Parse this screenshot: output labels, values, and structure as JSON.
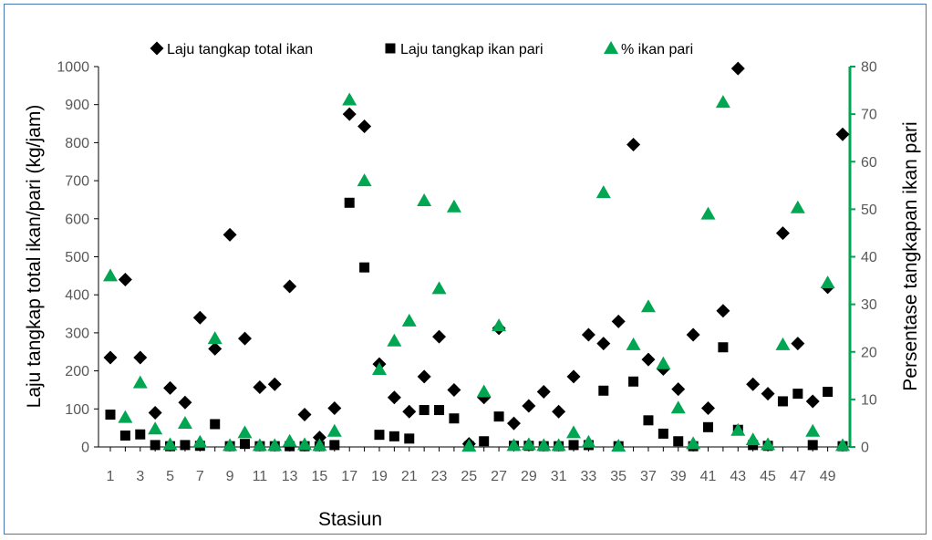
{
  "chart_data": {
    "type": "scatter",
    "xlabel": "Stasiun",
    "ylabel": "Laju tangkap total ikan/pari (kg/jam)",
    "y2label": "Persentase tangkapan ikan pari",
    "xlim": [
      1,
      50
    ],
    "ylim": [
      0,
      1000
    ],
    "y2lim": [
      0,
      80
    ],
    "x_tick_labels": [
      "1",
      "3",
      "5",
      "7",
      "9",
      "11",
      "13",
      "15",
      "17",
      "19",
      "21",
      "23",
      "25",
      "27",
      "29",
      "31",
      "33",
      "35",
      "37",
      "39",
      "41",
      "43",
      "45",
      "47",
      "49"
    ],
    "y_ticks": [
      "0",
      "100",
      "200",
      "300",
      "400",
      "500",
      "600",
      "700",
      "800",
      "900",
      "1000"
    ],
    "y2_ticks": [
      "0",
      "10",
      "20",
      "30",
      "40",
      "50",
      "60",
      "70",
      "80"
    ],
    "grid": false,
    "legend_position": "top",
    "x": [
      1,
      2,
      3,
      4,
      5,
      6,
      7,
      8,
      9,
      10,
      11,
      12,
      13,
      14,
      15,
      16,
      17,
      18,
      19,
      20,
      21,
      22,
      23,
      24,
      25,
      26,
      27,
      28,
      29,
      30,
      31,
      32,
      33,
      34,
      35,
      36,
      37,
      38,
      39,
      40,
      41,
      42,
      43,
      44,
      45,
      46,
      47,
      48,
      49,
      50
    ],
    "series": [
      {
        "name": "Laju tangkap total ikan",
        "marker": "diamond",
        "axis": "left",
        "color": "#000000",
        "values": [
          235,
          440,
          235,
          90,
          155,
          117,
          340,
          258,
          558,
          285,
          157,
          165,
          422,
          85,
          25,
          102,
          875,
          843,
          218,
          130,
          93,
          185,
          290,
          150,
          8,
          130,
          312,
          62,
          108,
          145,
          93,
          185,
          295,
          272,
          330,
          795,
          230,
          205,
          152,
          295,
          102,
          358,
          995,
          165,
          140,
          562,
          272,
          120,
          420,
          822
        ]
      },
      {
        "name": "Laju tangkap ikan pari",
        "marker": "square",
        "axis": "left",
        "color": "#000000",
        "values": [
          85,
          30,
          33,
          5,
          2,
          5,
          3,
          60,
          2,
          8,
          2,
          2,
          2,
          2,
          2,
          5,
          642,
          472,
          32,
          28,
          22,
          97,
          97,
          75,
          2,
          15,
          80,
          3,
          3,
          2,
          2,
          5,
          5,
          148,
          2,
          172,
          70,
          35,
          15,
          2,
          52,
          262,
          45,
          5,
          3,
          120,
          140,
          5,
          145,
          2
        ]
      },
      {
        "name": "% ikan pari",
        "marker": "triangle",
        "axis": "right",
        "color": "#00a651",
        "values": [
          36,
          6.2,
          13.5,
          3.8,
          0.5,
          5,
          1,
          22.8,
          0.3,
          3,
          0.3,
          0.3,
          1.2,
          0.5,
          0.3,
          3.3,
          73,
          56,
          16.3,
          22.3,
          26.5,
          51.8,
          33.3,
          50.5,
          0.2,
          11.6,
          25.5,
          0.3,
          0.5,
          0.3,
          0.3,
          3,
          1,
          53.5,
          0.2,
          21.5,
          29.5,
          17.5,
          8.2,
          0.7,
          49,
          72.5,
          3.5,
          1.5,
          0.5,
          21.5,
          50.3,
          3.3,
          34.5,
          0.3
        ]
      }
    ]
  }
}
